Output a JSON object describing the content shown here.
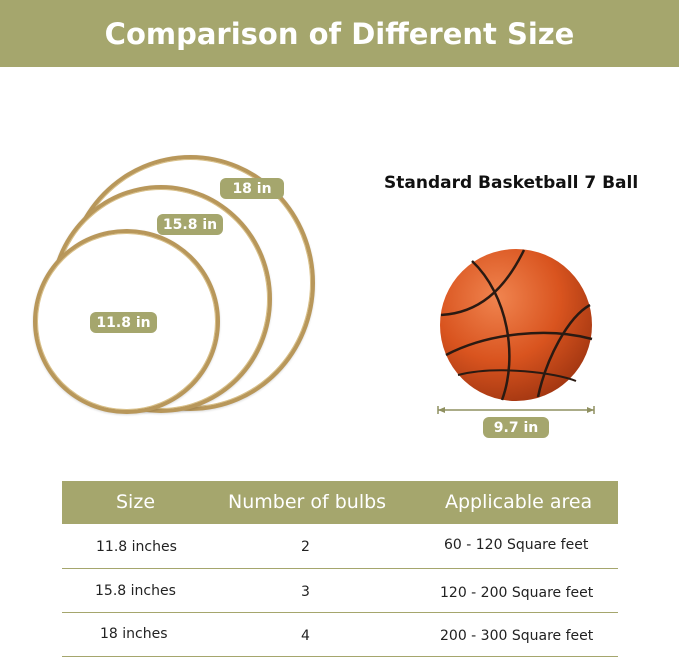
{
  "banner": {
    "title": "Comparison of Different Size"
  },
  "rings": [
    {
      "label": "18 in"
    },
    {
      "label": "15.8 in"
    },
    {
      "label": "11.8 in"
    }
  ],
  "ball": {
    "title": "Standard Basketball 7 Ball",
    "diameter_label": "9.7 in"
  },
  "table": {
    "headers": [
      "Size",
      "Number of bulbs",
      "Applicable area"
    ],
    "rows": [
      [
        "11.8 inches",
        "2",
        "60 - 120 Square feet"
      ],
      [
        "15.8 inches",
        "3",
        "120 - 200 Square feet"
      ],
      [
        "18 inches",
        "4",
        "200 - 300 Square feet"
      ]
    ]
  },
  "colors": {
    "accent": "#a5a66d",
    "ring": "#b8975a",
    "ball": "#d9541f"
  }
}
